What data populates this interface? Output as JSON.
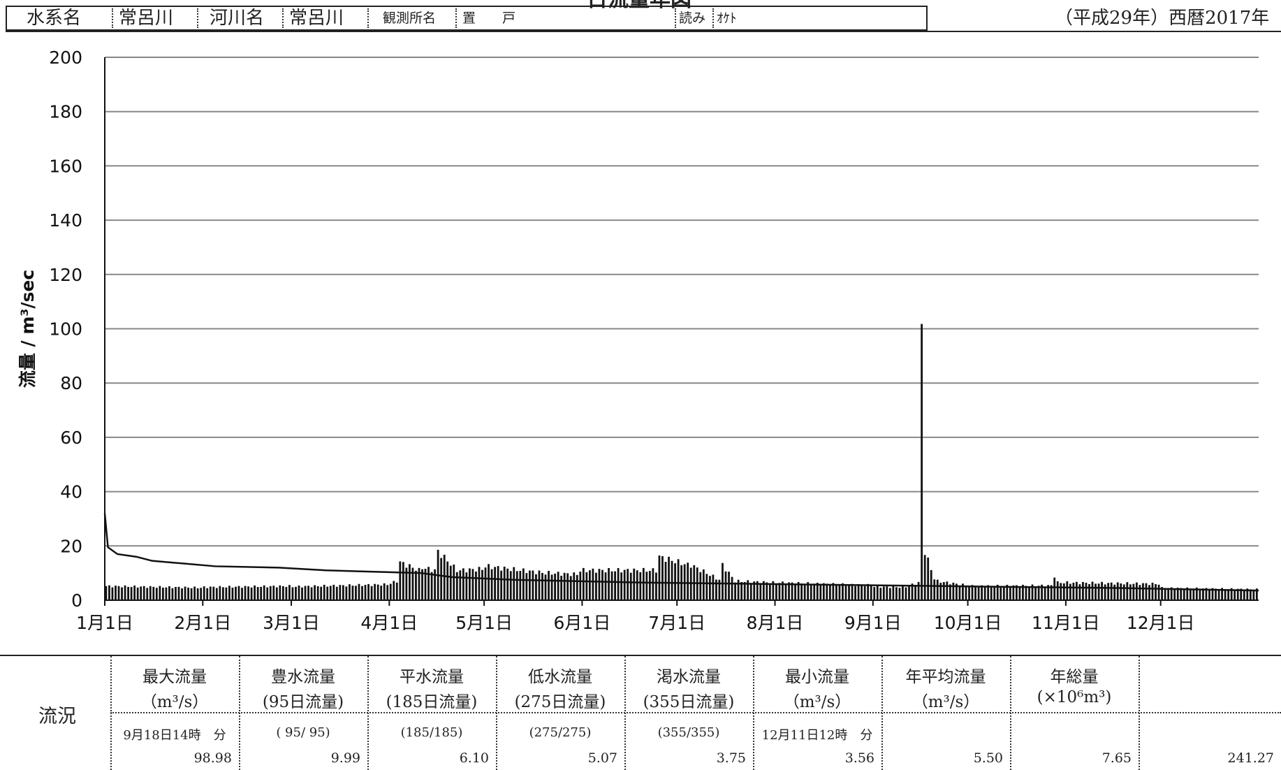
{
  "header": {
    "label_system": "水系名",
    "system": "常呂川",
    "label_river": "河川名",
    "river": "常呂川",
    "label_station": "観測所名",
    "station": "置　　戸",
    "label_reading": "読み",
    "reading": "ｵｹﾄ",
    "year": "（平成29年）西暦2017年",
    "title": "日流量年図"
  },
  "colors": {
    "line": "#111111",
    "bar": "#111111",
    "grid": "#888888"
  },
  "chart_data": {
    "type": "bar",
    "title": "日流量年図",
    "xlabel": "",
    "ylabel": "流量 / m³/sec",
    "ylim": [
      0,
      200
    ],
    "yticks": [
      0,
      20,
      40,
      60,
      80,
      100,
      120,
      140,
      160,
      180,
      200
    ],
    "xlim_days": [
      0,
      365
    ],
    "month_ticks": [
      {
        "label": "1月1日",
        "day": 0
      },
      {
        "label": "2月1日",
        "day": 31
      },
      {
        "label": "3月1日",
        "day": 59
      },
      {
        "label": "4月1日",
        "day": 90
      },
      {
        "label": "5月1日",
        "day": 120
      },
      {
        "label": "6月1日",
        "day": 151
      },
      {
        "label": "7月1日",
        "day": 181
      },
      {
        "label": "8月1日",
        "day": 212
      },
      {
        "label": "9月1日",
        "day": 243
      },
      {
        "label": "10月1日",
        "day": 273
      },
      {
        "label": "11月1日",
        "day": 304
      },
      {
        "label": "12月1日",
        "day": 334
      }
    ],
    "grid": true,
    "daily_flow_segments": [
      {
        "from": 0,
        "to": 31,
        "start": 5.2,
        "end": 4.6
      },
      {
        "from": 31,
        "to": 59,
        "start": 4.8,
        "end": 5.2
      },
      {
        "from": 59,
        "to": 90,
        "start": 5.0,
        "end": 5.8
      },
      {
        "from": 90,
        "to": 93,
        "start": 6.2,
        "end": 7.0
      },
      {
        "from": 93,
        "to": 100,
        "start": 14.0,
        "end": 11.0
      },
      {
        "from": 100,
        "to": 105,
        "start": 12.0,
        "end": 11.0
      },
      {
        "from": 105,
        "to": 112,
        "start": 18.0,
        "end": 11.0
      },
      {
        "from": 112,
        "to": 120,
        "start": 11.0,
        "end": 11.5
      },
      {
        "from": 120,
        "to": 140,
        "start": 12.5,
        "end": 10.0
      },
      {
        "from": 140,
        "to": 150,
        "start": 10.0,
        "end": 9.5
      },
      {
        "from": 150,
        "to": 175,
        "start": 11.0,
        "end": 11.0
      },
      {
        "from": 175,
        "to": 185,
        "start": 16.0,
        "end": 13.0
      },
      {
        "from": 185,
        "to": 195,
        "start": 13.0,
        "end": 7.5
      },
      {
        "from": 195,
        "to": 200,
        "start": 13.0,
        "end": 7.0
      },
      {
        "from": 200,
        "to": 212,
        "start": 7.0,
        "end": 6.5
      },
      {
        "from": 212,
        "to": 243,
        "start": 6.5,
        "end": 5.5
      },
      {
        "from": 243,
        "to": 253,
        "start": 5.0,
        "end": 4.8
      },
      {
        "from": 253,
        "to": 258,
        "start": 5.0,
        "end": 6.5
      },
      {
        "from": 258,
        "to": 259,
        "start": 98.98,
        "end": 98.98
      },
      {
        "from": 259,
        "to": 263,
        "start": 18.0,
        "end": 8.0
      },
      {
        "from": 263,
        "to": 273,
        "start": 7.0,
        "end": 5.5
      },
      {
        "from": 273,
        "to": 300,
        "start": 5.2,
        "end": 5.4
      },
      {
        "from": 300,
        "to": 301,
        "start": 9.0,
        "end": 9.0
      },
      {
        "from": 301,
        "to": 334,
        "start": 6.5,
        "end": 6.0
      },
      {
        "from": 334,
        "to": 365,
        "start": 4.5,
        "end": 4.0
      }
    ],
    "duration_curve": [
      {
        "day": 0,
        "value": 32
      },
      {
        "day": 1,
        "value": 19.5
      },
      {
        "day": 4,
        "value": 17
      },
      {
        "day": 10,
        "value": 16
      },
      {
        "day": 15,
        "value": 14.5
      },
      {
        "day": 25,
        "value": 13.5
      },
      {
        "day": 35,
        "value": 12.5
      },
      {
        "day": 55,
        "value": 12
      },
      {
        "day": 70,
        "value": 11
      },
      {
        "day": 85,
        "value": 10.5
      },
      {
        "day": 100,
        "value": 10
      },
      {
        "day": 110,
        "value": 8.5
      },
      {
        "day": 130,
        "value": 7.5
      },
      {
        "day": 170,
        "value": 6.5
      },
      {
        "day": 200,
        "value": 6.1
      },
      {
        "day": 275,
        "value": 5.07
      },
      {
        "day": 320,
        "value": 4.5
      },
      {
        "day": 355,
        "value": 3.75
      },
      {
        "day": 365,
        "value": 3.56
      }
    ]
  },
  "stats": {
    "row_label": "流況",
    "columns": [
      {
        "h1": "最大流量",
        "h2": "（m³/s）",
        "r1": "9月18日14時　分",
        "r2": "98.98"
      },
      {
        "h1": "豊水流量",
        "h2": "(95日流量)",
        "r1": "( 95/ 95)",
        "r2": "9.99"
      },
      {
        "h1": "平水流量",
        "h2": "(185日流量)",
        "r1": "(185/185)",
        "r2": "6.10"
      },
      {
        "h1": "低水流量",
        "h2": "(275日流量)",
        "r1": "(275/275)",
        "r2": "5.07"
      },
      {
        "h1": "渇水流量",
        "h2": "(355日流量)",
        "r1": "(355/355)",
        "r2": "3.75"
      },
      {
        "h1": "最小流量",
        "h2": "（m³/s）",
        "r1": "12月11日12時　分",
        "r2": "3.56"
      },
      {
        "h1": "年平均流量",
        "h2": "（m³/s）",
        "r1": "",
        "r2": "5.50"
      },
      {
        "h1": "年総量",
        "h2": "(×10⁶m³)",
        "r1": "",
        "r2": "7.65"
      },
      {
        "h1": "",
        "h2": "",
        "r1": "",
        "r2": "241.27"
      }
    ]
  }
}
